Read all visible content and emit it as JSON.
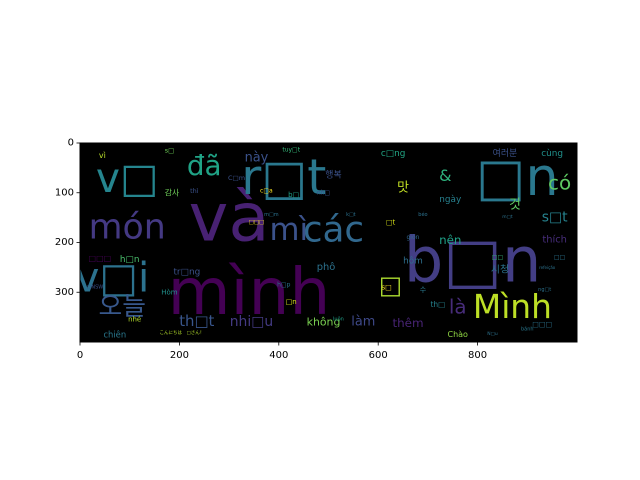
{
  "chart_data": {
    "type": "wordcloud-image",
    "title": "",
    "xlabel": "",
    "ylabel": "",
    "xlim": [
      0,
      1000
    ],
    "ylim": [
      400,
      0
    ],
    "xticks": [
      0,
      200,
      400,
      600,
      800
    ],
    "yticks": [
      0,
      100,
      200,
      300
    ],
    "background": "#000000",
    "words": [
      {
        "text": "và",
        "x": 300,
        "y": 150,
        "size": 135,
        "color": "#482173"
      },
      {
        "text": "mình",
        "x": 340,
        "y": 300,
        "size": 130,
        "color": "#440154"
      },
      {
        "text": "b□n",
        "x": 790,
        "y": 235,
        "size": 125,
        "color": "#433e85"
      },
      {
        "text": "r□t",
        "x": 410,
        "y": 70,
        "size": 98,
        "color": "#2a788e"
      },
      {
        "text": "□n",
        "x": 880,
        "y": 70,
        "size": 105,
        "color": "#2a788e"
      },
      {
        "text": "v□",
        "x": 95,
        "y": 70,
        "size": 82,
        "color": "#25858e"
      },
      {
        "text": "v□i",
        "x": 65,
        "y": 270,
        "size": 82,
        "color": "#2c728e"
      },
      {
        "text": "món",
        "x": 95,
        "y": 170,
        "size": 70,
        "color": "#443983"
      },
      {
        "text": "các",
        "x": 510,
        "y": 175,
        "size": 72,
        "color": "#31688e"
      },
      {
        "text": "mì",
        "x": 420,
        "y": 175,
        "size": 62,
        "color": "#3b528b"
      },
      {
        "text": "Mình",
        "x": 870,
        "y": 330,
        "size": 66,
        "color": "#bddf26"
      },
      {
        "text": "đã",
        "x": 250,
        "y": 45,
        "size": 56,
        "color": "#20a386"
      },
      {
        "text": "오늘",
        "x": 85,
        "y": 330,
        "size": 52,
        "color": "#38588c"
      },
      {
        "text": "có",
        "x": 965,
        "y": 80,
        "size": 40,
        "color": "#5ec962"
      },
      {
        "text": "□",
        "x": 625,
        "y": 285,
        "size": 50,
        "color": "#addc30"
      },
      {
        "text": "là",
        "x": 760,
        "y": 330,
        "size": 40,
        "color": "#472c7a"
      },
      {
        "text": "này",
        "x": 355,
        "y": 30,
        "size": 26,
        "color": "#3b528b"
      },
      {
        "text": "th□t",
        "x": 235,
        "y": 358,
        "size": 30,
        "color": "#39568c"
      },
      {
        "text": "nhi□u",
        "x": 345,
        "y": 360,
        "size": 28,
        "color": "#443a83"
      },
      {
        "text": "không",
        "x": 490,
        "y": 360,
        "size": 22,
        "color": "#7ad151"
      },
      {
        "text": "làm",
        "x": 570,
        "y": 360,
        "size": 26,
        "color": "#3e4989"
      },
      {
        "text": "thêm",
        "x": 660,
        "y": 362,
        "size": 24,
        "color": "#482475"
      },
      {
        "text": "&",
        "x": 735,
        "y": 65,
        "size": 32,
        "color": "#2db27d"
      },
      {
        "text": "맛",
        "x": 650,
        "y": 90,
        "size": 26,
        "color": "#c2df23"
      },
      {
        "text": "nên",
        "x": 745,
        "y": 195,
        "size": 24,
        "color": "#1fa188"
      },
      {
        "text": "hôm",
        "x": 670,
        "y": 238,
        "size": 18,
        "color": "#2e6f8e"
      },
      {
        "text": "s□t",
        "x": 955,
        "y": 150,
        "size": 28,
        "color": "#26828e"
      },
      {
        "text": "것",
        "x": 875,
        "y": 125,
        "size": 26,
        "color": "#5ec962"
      },
      {
        "text": "thích",
        "x": 955,
        "y": 195,
        "size": 20,
        "color": "#472d7b"
      },
      {
        "text": "시청",
        "x": 845,
        "y": 255,
        "size": 20,
        "color": "#2c728e"
      },
      {
        "text": "여러분",
        "x": 855,
        "y": 22,
        "size": 18,
        "color": "#3b528b"
      },
      {
        "text": "cùng",
        "x": 950,
        "y": 22,
        "size": 18,
        "color": "#21918c"
      },
      {
        "text": "c□ng",
        "x": 630,
        "y": 22,
        "size": 18,
        "color": "#22a785"
      },
      {
        "text": "tuy□t",
        "x": 425,
        "y": 14,
        "size": 12,
        "color": "#35b779"
      },
      {
        "text": "s□",
        "x": 180,
        "y": 15,
        "size": 13,
        "color": "#6ece58"
      },
      {
        "text": "vì",
        "x": 45,
        "y": 25,
        "size": 16,
        "color": "#b8de29"
      },
      {
        "text": "행복",
        "x": 510,
        "y": 65,
        "size": 18,
        "color": "#3b528b"
      },
      {
        "text": "감사",
        "x": 185,
        "y": 100,
        "size": 16,
        "color": "#6ece58"
      },
      {
        "text": "ngày",
        "x": 745,
        "y": 115,
        "size": 18,
        "color": "#27808e"
      },
      {
        "text": "h□n",
        "x": 100,
        "y": 235,
        "size": 18,
        "color": "#4ac16d"
      },
      {
        "text": "□□□",
        "x": 40,
        "y": 232,
        "size": 16,
        "color": "#440154"
      },
      {
        "text": "tr□ng",
        "x": 215,
        "y": 260,
        "size": 18,
        "color": "#3b528b"
      },
      {
        "text": "phô",
        "x": 495,
        "y": 250,
        "size": 20,
        "color": "#2c728e"
      },
      {
        "text": "Hòm",
        "x": 180,
        "y": 300,
        "size": 14,
        "color": "#21918c"
      },
      {
        "text": "chiên",
        "x": 70,
        "y": 385,
        "size": 17,
        "color": "#2a788e"
      },
      {
        "text": "Chào",
        "x": 760,
        "y": 385,
        "size": 16,
        "color": "#90d743"
      },
      {
        "text": "□n",
        "x": 425,
        "y": 320,
        "size": 14,
        "color": "#d8e219"
      },
      {
        "text": "s□",
        "x": 617,
        "y": 290,
        "size": 14,
        "color": "#fde725"
      },
      {
        "text": "b□",
        "x": 430,
        "y": 105,
        "size": 14,
        "color": "#1fa188"
      },
      {
        "text": "nh□",
        "x": 490,
        "y": 100,
        "size": 12,
        "color": "#3b528b"
      },
      {
        "text": "c□a",
        "x": 375,
        "y": 96,
        "size": 12,
        "color": "#fde725"
      },
      {
        "text": "□t",
        "x": 625,
        "y": 160,
        "size": 14,
        "color": "#d8e219"
      },
      {
        "text": "thì",
        "x": 230,
        "y": 96,
        "size": 13,
        "color": "#3b528b"
      },
      {
        "text": "C□m",
        "x": 315,
        "y": 70,
        "size": 13,
        "color": "#3b528b"
      },
      {
        "text": "nhé",
        "x": 110,
        "y": 355,
        "size": 14,
        "color": "#b5de2b"
      },
      {
        "text": "luôn",
        "x": 520,
        "y": 355,
        "size": 10,
        "color": "#1f9e89"
      },
      {
        "text": "th□",
        "x": 720,
        "y": 325,
        "size": 15,
        "color": "#26828e"
      },
      {
        "text": "bánh",
        "x": 900,
        "y": 375,
        "size": 10,
        "color": "#29788e"
      },
      {
        "text": "giòn",
        "x": 670,
        "y": 190,
        "size": 12,
        "color": "#31688e"
      },
      {
        "text": "□□□",
        "x": 930,
        "y": 365,
        "size": 14,
        "color": "#2c728e"
      },
      {
        "text": "h□p",
        "x": 410,
        "y": 285,
        "size": 12,
        "color": "#2c728e"
      },
      {
        "text": "수",
        "x": 690,
        "y": 295,
        "size": 14,
        "color": "#2a788e"
      },
      {
        "text": "□□",
        "x": 840,
        "y": 230,
        "size": 12,
        "color": "#35b779"
      },
      {
        "text": "ng□t",
        "x": 935,
        "y": 295,
        "size": 10,
        "color": "#2c728e"
      },
      {
        "text": "□□",
        "x": 965,
        "y": 230,
        "size": 12,
        "color": "#2c728e"
      },
      {
        "text": "□NSW",
        "x": 30,
        "y": 290,
        "size": 10,
        "color": "#3b528b"
      },
      {
        "text": "こんにちは　□さん！",
        "x": 205,
        "y": 383,
        "size": 9,
        "color": "#b5de2b"
      },
      {
        "text": "N□u",
        "x": 830,
        "y": 385,
        "size": 9,
        "color": "#2c728e"
      },
      {
        "text": "refeição",
        "x": 940,
        "y": 250,
        "size": 8,
        "color": "#2c728e"
      },
      {
        "text": "m□t",
        "x": 860,
        "y": 150,
        "size": 9,
        "color": "#2c728e"
      },
      {
        "text": "béo",
        "x": 690,
        "y": 145,
        "size": 10,
        "color": "#2c728e"
      },
      {
        "text": "k□t",
        "x": 545,
        "y": 145,
        "size": 10,
        "color": "#2c728e"
      },
      {
        "text": "□□□",
        "x": 355,
        "y": 160,
        "size": 11,
        "color": "#fde725"
      },
      {
        "text": "m□m",
        "x": 385,
        "y": 145,
        "size": 10,
        "color": "#2c728e"
      }
    ]
  }
}
